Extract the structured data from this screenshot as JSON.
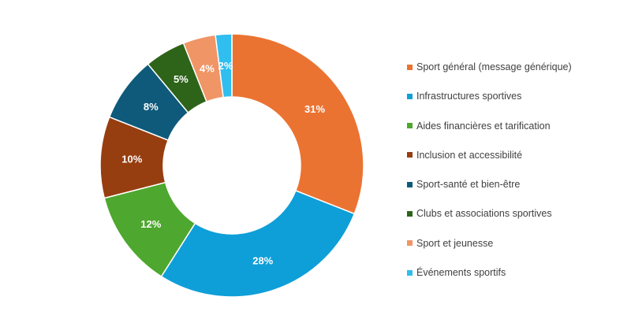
{
  "chart_data": {
    "type": "pie",
    "donut": true,
    "title": "",
    "legend_position": "right",
    "series": [
      {
        "label": "Sport général (message générique)",
        "value": 31,
        "display": "31%",
        "color": "#EB7332"
      },
      {
        "label": "Infrastructures sportives",
        "value": 28,
        "display": "28%",
        "color": "#0E9FD8"
      },
      {
        "label": "Aides financières et tarification",
        "value": 12,
        "display": "12%",
        "color": "#4EA72E"
      },
      {
        "label": "Inclusion et accessibilité",
        "value": 10,
        "display": "10%",
        "color": "#973E10"
      },
      {
        "label": "Sport-santé et bien-être",
        "value": 8,
        "display": "8%",
        "color": "#0F5A7A"
      },
      {
        "label": "Clubs et associations sportives",
        "value": 5,
        "display": "5%",
        "color": "#2E6419"
      },
      {
        "label": "Sport et jeunesse",
        "value": 4,
        "display": "4%",
        "color": "#F09566"
      },
      {
        "label": "Événements sportifs",
        "value": 2,
        "display": "2%",
        "color": "#2FBEEF"
      }
    ]
  }
}
